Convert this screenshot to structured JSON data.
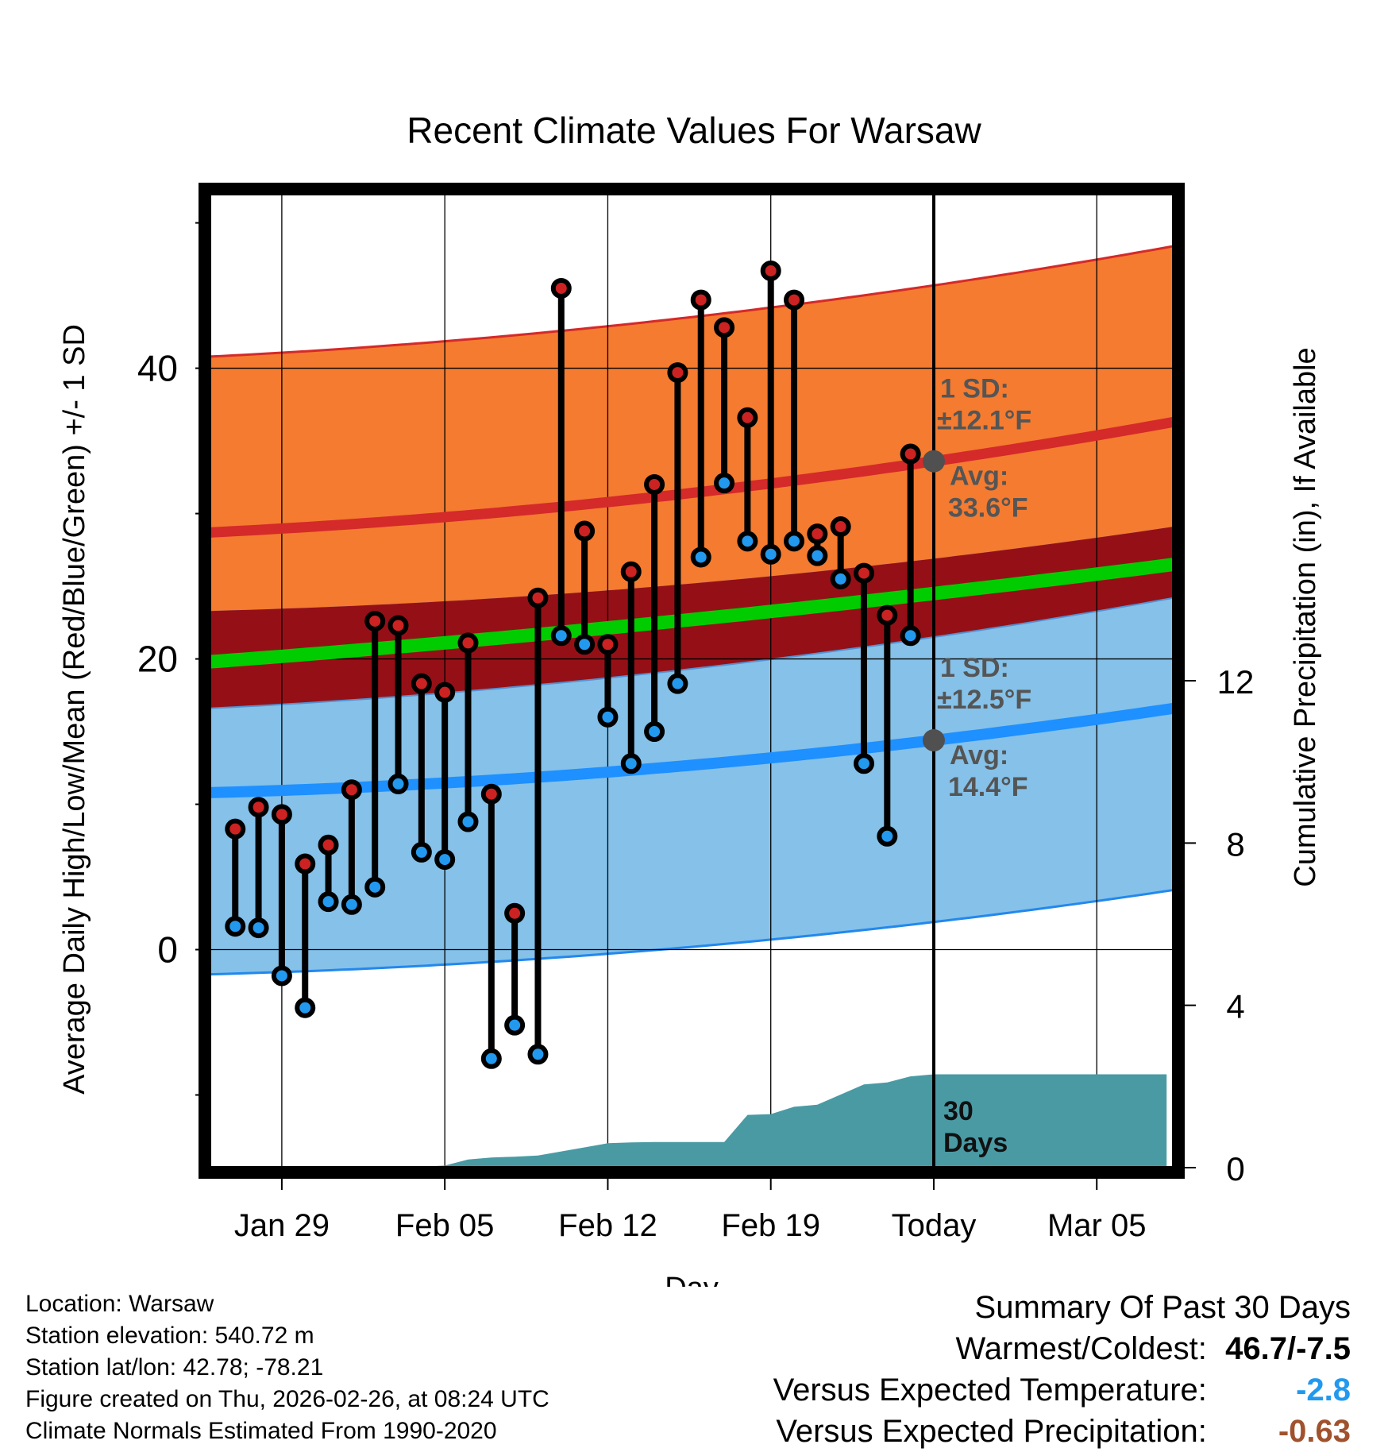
{
  "chart_data": {
    "type": "line",
    "title": "Recent Climate Values For Warsaw",
    "xlabel": "Day",
    "ylabel_left": "Average Daily High/Low/Mean (Red/Blue/Green) +/- 1 SD",
    "ylabel_right": "Cumulative Precipitation (in), If Available",
    "y_left_range": [
      -15,
      52
    ],
    "y_left_ticks": [
      0,
      20,
      40
    ],
    "y_right_range": [
      0,
      24
    ],
    "y_right_ticks": [
      0,
      4,
      8,
      12
    ],
    "x_range": [
      -3.1,
      38.3
    ],
    "x_ticks": [
      {
        "day": 0,
        "label": "Jan 29"
      },
      {
        "day": 7,
        "label": "Feb 05"
      },
      {
        "day": 14,
        "label": "Feb 12"
      },
      {
        "day": 21,
        "label": "Feb 19"
      },
      {
        "day": 28,
        "label": "Today"
      },
      {
        "day": 35,
        "label": "Mar 05"
      }
    ],
    "today_day": 28,
    "normals": {
      "high_avg": {
        "start": 28.7,
        "today": 33.6,
        "end": 36.3
      },
      "high_sd": 12.1,
      "low_avg": {
        "start": 10.8,
        "today": 14.4,
        "end": 16.6
      },
      "low_sd": 12.5,
      "mean_avg": {
        "start": 19.8,
        "today": 24.5,
        "end": 26.5
      }
    },
    "annotations": {
      "high_sd_label": "1 SD:",
      "high_sd_value": "±12.1°F",
      "high_avg_label": "Avg:",
      "high_avg_value": "33.6°F",
      "low_sd_label": "1 SD:",
      "low_sd_value": "±12.5°F",
      "low_avg_label": "Avg:",
      "low_avg_value": "14.4°F",
      "precip_period": "30",
      "precip_period_unit": "Days"
    },
    "series": [
      {
        "name": "Daily High",
        "color": "#cc2222",
        "day": [
          -2,
          -1,
          0,
          1,
          2,
          3,
          4,
          5,
          6,
          7,
          8,
          9,
          10,
          11,
          12,
          13,
          14,
          15,
          16,
          17,
          18,
          19,
          20,
          21,
          22,
          23,
          24,
          25,
          26,
          27
        ],
        "values": [
          8.3,
          9.8,
          9.3,
          5.9,
          7.2,
          11.0,
          22.6,
          22.3,
          18.3,
          17.7,
          21.1,
          10.7,
          2.5,
          24.2,
          45.5,
          28.8,
          21.0,
          26.0,
          32.0,
          39.7,
          44.7,
          42.8,
          36.6,
          46.7,
          44.7,
          28.6,
          29.1,
          25.9,
          23.0,
          34.1
        ]
      },
      {
        "name": "Daily Low",
        "color": "#2299ee",
        "day": [
          -2,
          -1,
          0,
          1,
          2,
          3,
          4,
          5,
          6,
          7,
          8,
          9,
          10,
          11,
          12,
          13,
          14,
          15,
          16,
          17,
          18,
          19,
          20,
          21,
          22,
          23,
          24,
          25,
          26,
          27
        ],
        "values": [
          1.6,
          1.5,
          -1.8,
          -4.0,
          3.3,
          3.1,
          4.3,
          11.4,
          6.7,
          6.2,
          8.8,
          -7.5,
          -5.2,
          -7.2,
          21.6,
          21.0,
          16.0,
          12.8,
          15.0,
          18.3,
          27.0,
          32.1,
          28.1,
          27.2,
          28.1,
          27.1,
          25.5,
          12.8,
          7.8,
          21.6
        ]
      },
      {
        "name": "Cumulative Precipitation (in)",
        "day": [
          5,
          7,
          8,
          9,
          10,
          11,
          12,
          13,
          14,
          15,
          16,
          17,
          18,
          19,
          20,
          21,
          22,
          23,
          24,
          25,
          26,
          27,
          28,
          29,
          30,
          31,
          32,
          33,
          34,
          35,
          36,
          37,
          38
        ],
        "values": [
          0,
          0.05,
          0.2,
          0.25,
          0.27,
          0.3,
          0.4,
          0.5,
          0.6,
          0.62,
          0.63,
          0.63,
          0.63,
          0.63,
          1.3,
          1.32,
          1.5,
          1.55,
          1.8,
          2.05,
          2.1,
          2.25,
          2.3,
          2.3,
          2.3,
          2.3,
          2.3,
          2.3,
          2.3,
          2.3,
          2.3,
          2.3,
          2.3
        ]
      }
    ]
  },
  "footer": {
    "location": "Location: Warsaw",
    "elevation": "Station elevation: 540.72 m",
    "latlon": "Station lat/lon: 42.78; -78.21",
    "created": "Figure created on Thu, 2026-02-26, at 08:24 UTC",
    "normals": "Climate Normals Estimated From 1990-2020"
  },
  "summary": {
    "title": "Summary Of Past 30 Days",
    "warmest_label": "Warmest/Coldest:",
    "warmest_value": "46.7/-7.5",
    "temp_label": "Versus Expected Temperature:",
    "temp_value": "-2.8",
    "temp_color": "#2299ee",
    "precip_label": "Versus Expected Precipitation:",
    "precip_value": "-0.63",
    "precip_color": "#a0522d"
  }
}
